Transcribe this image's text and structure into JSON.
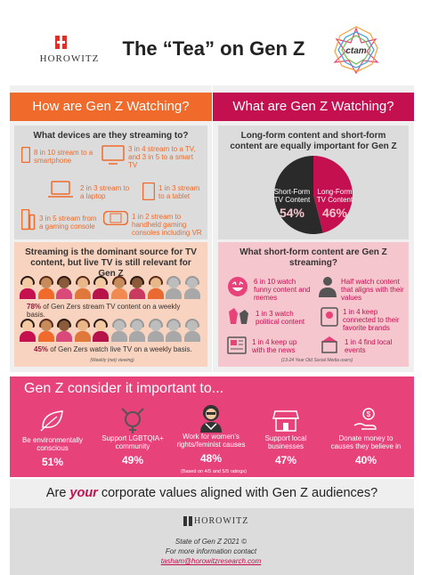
{
  "header": {
    "brand": "HOROWITZ",
    "title": "The “Tea” on Gen Z",
    "partner_logo_text": "ctam",
    "colors": {
      "orange": "#ef6a2b",
      "magenta": "#c5104f",
      "pink": "#e8427a"
    }
  },
  "left": {
    "band_title": "How are Gen Z Watching?",
    "devices_heading": "What devices are they streaming to?",
    "devices": [
      {
        "icon": "smartphone-icon",
        "text": "8 in 10 stream to a smartphone"
      },
      {
        "icon": "tv-icon",
        "text": "3 in 4 stream to a TV, and 3 in 5 to a smart TV"
      },
      {
        "icon": "laptop-icon",
        "text": "2 in 3 stream to a laptop"
      },
      {
        "icon": "tablet-icon",
        "text": "1 in 3 stream to a tablet"
      },
      {
        "icon": "gaming-console-icon",
        "text": "3 in 5 stream from a gaming console"
      },
      {
        "icon": "handheld-console-icon",
        "text": "1 in 2 stream to handheld gaming consoles including VR"
      }
    ],
    "streaming_heading": "Streaming is the dominant source for TV content, but live TV is still relevant for Gen Z",
    "stat1_pct": "78%",
    "stat1_text": "of Gen Zers stream TV content on a weekly basis.",
    "stat1_value": 78,
    "stat2_pct": "45%",
    "stat2_text": "of Gen Zers watch live TV on a weekly basis.",
    "stat2_value": 45,
    "note": "(Weekly (net) viewing)"
  },
  "right": {
    "band_title": "What are Gen Z Watching?",
    "long_heading": "Long-form content and short-form content are equally important for Gen Z",
    "pie": {
      "short_label": "Short-Form TV Content",
      "short_pct": "54%",
      "short_value": 54,
      "long_label": "Long-Form TV Content",
      "long_pct": "46%",
      "long_value": 46
    },
    "short_heading": "What short-form content are Gen Z streaming?",
    "items": [
      {
        "icon": "laughing-emoji-icon",
        "text": "6 in 10 watch funny content and memes"
      },
      {
        "icon": "values-icon",
        "text": "Half watch content that aligns with their values"
      },
      {
        "icon": "political-icon",
        "text": "1 in 3 watch political content"
      },
      {
        "icon": "brands-icon",
        "text": "1 in 4 keep connected to their favorite brands"
      },
      {
        "icon": "news-icon",
        "text": "1 in 4 keep up with the news"
      },
      {
        "icon": "local-events-icon",
        "text": "1 in 4 find local events"
      }
    ],
    "note": "(13-24 Year Old Social Media users)"
  },
  "genz": {
    "title": "Gen Z consider it important to...",
    "items": [
      {
        "icon": "environment-icon",
        "label": "Be environmentally conscious",
        "pct": "51%"
      },
      {
        "icon": "lgbtq-icon",
        "label": "Support LGBTQIA+ community",
        "pct": "49%"
      },
      {
        "icon": "rbg-portrait-icon",
        "label": "Work for women’s rights/feminist causes",
        "pct": "48%"
      },
      {
        "icon": "storefront-icon",
        "label": "Support local businesses",
        "pct": "47%"
      },
      {
        "icon": "donate-icon",
        "label": "Donate money to causes they believe in",
        "pct": "40%"
      }
    ],
    "note": "(Based on 4/5 and 5/5 ratings)"
  },
  "question": {
    "pre": "Are ",
    "emph": "your",
    "post": " corporate values aligned with Gen Z audiences?"
  },
  "footer": {
    "brand": "HOROWITZ",
    "line1": "State of Gen Z 2021 ©",
    "line2": "For more information contact",
    "email": "tasham@horowitzresearch.com"
  }
}
